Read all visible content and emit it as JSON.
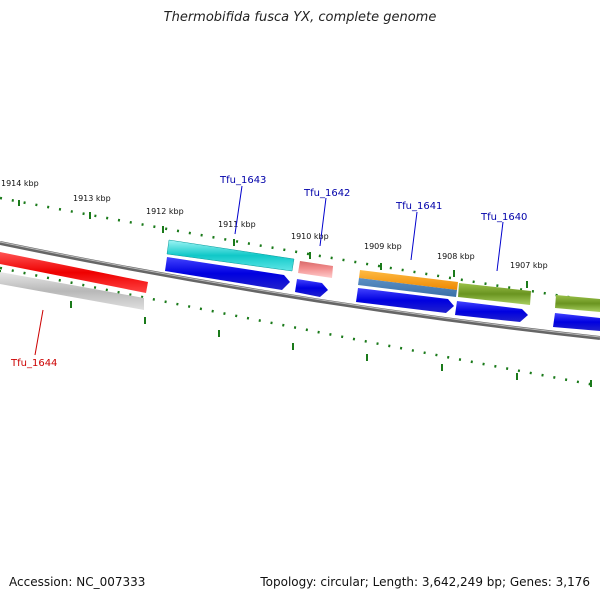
{
  "title": "Thermobifida fusca YX, complete genome",
  "footer": {
    "accession_label": "Accession:",
    "accession": "NC_007333",
    "topology_text": "Topology: circular; Length: 3,642,249 bp; Genes: 3,176"
  },
  "ticks": [
    {
      "label": "1914 kbp"
    },
    {
      "label": "1913 kbp"
    },
    {
      "label": "1912 kbp"
    },
    {
      "label": "1911 kbp"
    },
    {
      "label": "1910 kbp"
    },
    {
      "label": "1909 kbp"
    },
    {
      "label": "1908 kbp"
    },
    {
      "label": "1907 kbp"
    }
  ],
  "genes": [
    {
      "name": "Tfu_1644",
      "color": "#cc0000"
    },
    {
      "name": "Tfu_1643",
      "color": "#0000aa"
    },
    {
      "name": "Tfu_1642",
      "color": "#0000aa"
    },
    {
      "name": "Tfu_1641",
      "color": "#0000aa"
    },
    {
      "name": "Tfu_1640",
      "color": "#0000aa"
    }
  ],
  "colors": {
    "backbone": "#777777",
    "tick": "#1a7a1a",
    "cds": "#0000dd",
    "red_feature": "#ee0000",
    "grey_feature": "#bbbbbb",
    "cyan_feature": "#11cccc",
    "pink_feature": "#ee8888",
    "orange_feature": "#ff9900",
    "steel_feature": "#5588bb",
    "olive_feature": "#6f9a1f"
  }
}
